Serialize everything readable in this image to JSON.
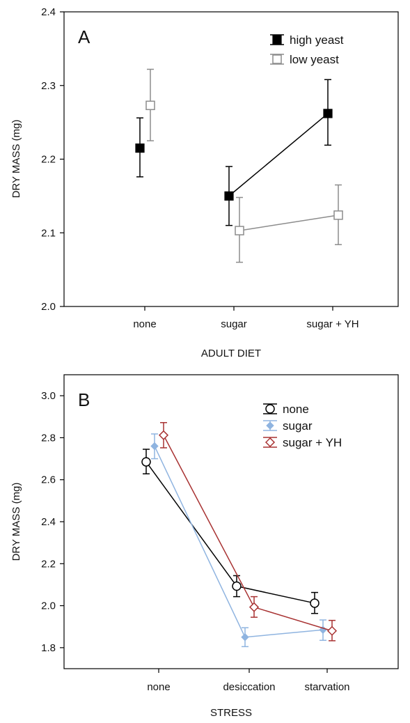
{
  "chart_data": [
    {
      "type": "line",
      "panel_label": "A",
      "xlabel": "ADULT DIET",
      "ylabel": "DRY MASS (mg)",
      "categories": [
        "none",
        "sugar",
        "sugar + YH"
      ],
      "ylim": [
        2.0,
        2.4
      ],
      "yticks": [
        "2.0",
        "2.1",
        "2.2",
        "2.3",
        "2.4"
      ],
      "grid": false,
      "legend_position": "top-right",
      "series": [
        {
          "name": "high yeast",
          "color": "#000000",
          "marker": "square-filled",
          "values": [
            2.215,
            2.15,
            2.262
          ],
          "err_low": [
            2.176,
            2.11,
            2.219
          ],
          "err_high": [
            2.256,
            2.19,
            2.308
          ],
          "connected": [
            false,
            true,
            true
          ]
        },
        {
          "name": "low yeast",
          "color": "#8c8c8c",
          "marker": "square-open",
          "values": [
            2.273,
            2.103,
            2.124
          ],
          "err_low": [
            2.225,
            2.06,
            2.084
          ],
          "err_high": [
            2.322,
            2.148,
            2.165
          ],
          "connected": [
            false,
            true,
            true
          ]
        }
      ]
    },
    {
      "type": "line",
      "panel_label": "B",
      "xlabel": "STRESS",
      "ylabel": "DRY MASS (mg)",
      "categories": [
        "none",
        "desiccation",
        "starvation"
      ],
      "ylim": [
        1.7,
        3.1
      ],
      "yticks": [
        "1.8",
        "2.0",
        "2.2",
        "2.4",
        "2.6",
        "2.8",
        "3.0"
      ],
      "grid": false,
      "legend_position": "top-right",
      "series": [
        {
          "name": "none",
          "color": "#000000",
          "marker": "circle-open",
          "values": [
            2.685,
            2.093,
            2.012
          ],
          "err_low": [
            2.628,
            2.043,
            1.963
          ],
          "err_high": [
            2.745,
            2.143,
            2.063
          ],
          "connected": [
            true,
            true,
            true
          ]
        },
        {
          "name": "sugar",
          "color": "#8fb4e0",
          "marker": "diamond-filled",
          "values": [
            2.76,
            1.85,
            1.885
          ],
          "err_low": [
            2.7,
            1.805,
            1.835
          ],
          "err_high": [
            2.818,
            1.895,
            1.932
          ],
          "connected": [
            true,
            true,
            true
          ]
        },
        {
          "name": "sugar + YH",
          "color": "#a83232",
          "marker": "diamond-open",
          "values": [
            2.812,
            1.993,
            1.88
          ],
          "err_low": [
            2.752,
            1.945,
            1.833
          ],
          "err_high": [
            2.872,
            2.043,
            1.93
          ],
          "connected": [
            true,
            true,
            true
          ]
        }
      ]
    }
  ]
}
